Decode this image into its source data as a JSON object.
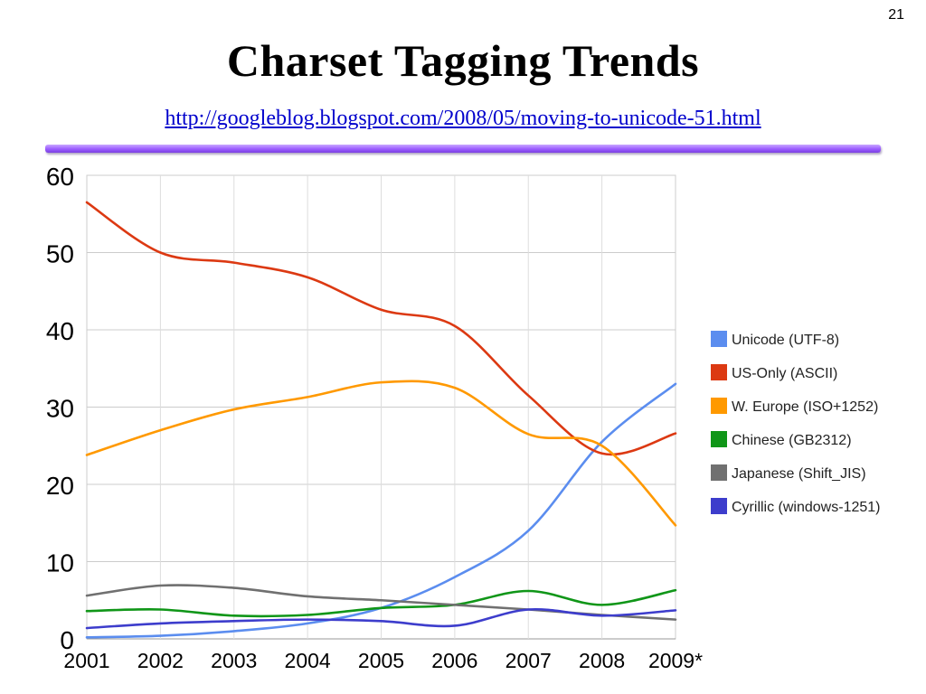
{
  "slide": {
    "number": "21",
    "title": "Charset Tagging Trends",
    "source_link": "http://googleblog.blogspot.com/2008/05/moving-to-unicode-51.html"
  },
  "chart_data": {
    "type": "line",
    "x": [
      "2001",
      "2002",
      "2003",
      "2004",
      "2005",
      "2006",
      "2007",
      "2008",
      "2009*"
    ],
    "ylim": [
      0,
      60
    ],
    "yticks": [
      0,
      10,
      20,
      30,
      40,
      50,
      60
    ],
    "grid": true,
    "legend_position": "right",
    "series": [
      {
        "name": "Unicode (UTF-8)",
        "color": "#5b8def",
        "values": [
          0.2,
          0.4,
          1.0,
          2.0,
          4.0,
          8.0,
          14.0,
          25.5,
          33.0
        ]
      },
      {
        "name": "US-Only (ASCII)",
        "color": "#dc3912",
        "values": [
          56.5,
          50.0,
          48.7,
          46.8,
          42.6,
          40.5,
          31.5,
          24.0,
          26.6
        ]
      },
      {
        "name": "W. Europe (ISO+1252)",
        "color": "#ff9900",
        "values": [
          23.8,
          27.0,
          29.7,
          31.3,
          33.2,
          32.5,
          26.5,
          25.0,
          14.7
        ]
      },
      {
        "name": "Chinese (GB2312)",
        "color": "#109618",
        "values": [
          3.6,
          3.8,
          3.0,
          3.1,
          4.0,
          4.4,
          6.2,
          4.4,
          6.3
        ]
      },
      {
        "name": "Japanese (Shift_JIS)",
        "color": "#707070",
        "values": [
          5.6,
          6.9,
          6.6,
          5.5,
          5.0,
          4.4,
          3.8,
          3.1,
          2.5
        ]
      },
      {
        "name": "Cyrillic (windows-1251)",
        "color": "#3d3dcc",
        "values": [
          1.4,
          2.0,
          2.3,
          2.5,
          2.3,
          1.7,
          3.8,
          3.0,
          3.7
        ]
      }
    ]
  }
}
